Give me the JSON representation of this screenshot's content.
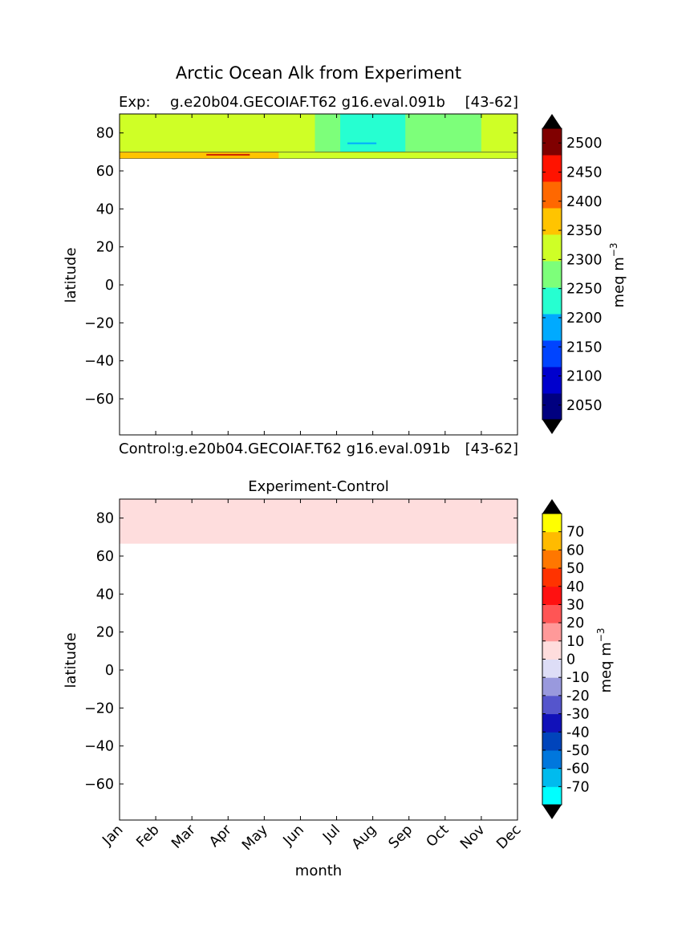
{
  "figure_title": "Arctic Ocean Alk from Experiment",
  "chart_data": [
    {
      "type": "heatmap",
      "name": "experiment",
      "subtitle_left": "Exp:",
      "subtitle_mid": "g.e20b04.GECOIAF.T62 g16.eval.091b",
      "subtitle_right": "[43-62]",
      "ylabel": "latitude",
      "x": [
        "Jan",
        "Feb",
        "Mar",
        "Apr",
        "May",
        "Jun",
        "Jul",
        "Aug",
        "Sep",
        "Oct",
        "Nov",
        "Dec"
      ],
      "ylim": [
        -79,
        90
      ],
      "yticks": [
        80,
        60,
        40,
        20,
        0,
        -20,
        -40,
        -60
      ],
      "data_lat_range": [
        66.5,
        90
      ],
      "colorbar": {
        "label": "meq m",
        "label_exp": "−3",
        "levels": [
          2025,
          2050,
          2075,
          2100,
          2125,
          2150,
          2175,
          2200,
          2225,
          2250,
          2275,
          2300,
          2325,
          2350,
          2375,
          2400,
          2425,
          2450,
          2475,
          2500,
          2525
        ],
        "tick_labels": [
          "2050",
          "2100",
          "2150",
          "2200",
          "2250",
          "2300",
          "2350",
          "2400",
          "2450",
          "2500"
        ],
        "colors": [
          "#000080",
          "#0000cd",
          "#0044ff",
          "#00aaff",
          "#26ffd1",
          "#7dff7a",
          "#cfff26",
          "#ffc400",
          "#ff6800",
          "#ff1300",
          "#800000"
        ],
        "extend": "both"
      },
      "bands": [
        {
          "lat": [
            70,
            90
          ],
          "segments": [
            {
              "x": [
                0,
                5.4
              ],
              "color_index": 6
            },
            {
              "x": [
                5.4,
                6.1
              ],
              "color_index": 5
            },
            {
              "x": [
                6.1,
                7.9
              ],
              "color_index": 4
            },
            {
              "x": [
                7.9,
                10.0
              ],
              "color_index": 5
            },
            {
              "x": [
                10.0,
                11.0
              ],
              "color_index": 6
            }
          ]
        },
        {
          "lat": [
            66.5,
            70
          ],
          "segments": [
            {
              "x": [
                0,
                4.4
              ],
              "color_index": 7
            },
            {
              "x": [
                4.4,
                11.0
              ],
              "color_index": 6
            }
          ]
        }
      ]
    },
    {
      "type": "heatmap",
      "name": "difference",
      "subtitle_left": "Control:",
      "subtitle_mid": "g.e20b04.GECOIAF.T62 g16.eval.091b",
      "subtitle_right": "[43-62]",
      "title": "Experiment-Control",
      "xlabel": "month",
      "ylabel": "latitude",
      "x": [
        "Jan",
        "Feb",
        "Mar",
        "Apr",
        "May",
        "Jun",
        "Jul",
        "Aug",
        "Sep",
        "Oct",
        "Nov",
        "Dec"
      ],
      "ylim": [
        -79,
        90
      ],
      "yticks": [
        80,
        60,
        40,
        20,
        0,
        -20,
        -40,
        -60
      ],
      "data_lat_range": [
        66.5,
        90
      ],
      "values": "all 0 to 10",
      "fill_color": "#fedddd",
      "colorbar": {
        "label": "meq m",
        "label_exp": "−3",
        "levels": [
          -80,
          -70,
          -60,
          -50,
          -40,
          -30,
          -20,
          -10,
          0,
          10,
          20,
          30,
          40,
          50,
          60,
          70,
          80
        ],
        "tick_labels": [
          "-70",
          "-60",
          "-50",
          "-40",
          "-30",
          "-20",
          "-10",
          "0",
          "10",
          "20",
          "30",
          "40",
          "50",
          "60",
          "70"
        ],
        "colors": [
          "#00ffff",
          "#00bbee",
          "#0077dd",
          "#0044bb",
          "#1111b9",
          "#5555cc",
          "#9999dd",
          "#ddddf6",
          "#fedddd",
          "#ff9999",
          "#ff5555",
          "#ff1111",
          "#ff3300",
          "#ff7700",
          "#ffbb00",
          "#ffff00"
        ],
        "extend": "both"
      }
    }
  ]
}
